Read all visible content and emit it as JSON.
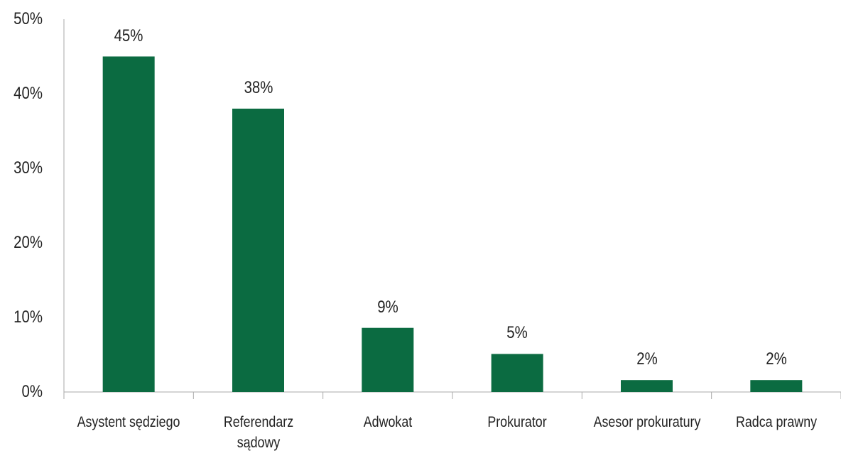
{
  "chart_data": {
    "type": "bar",
    "categories": [
      "Asystent sędziego",
      "Referendarz sądowy",
      "Adwokat",
      "Prokurator",
      "Asesor prokuratury",
      "Radca prawny"
    ],
    "values": [
      45,
      38,
      8.6,
      5.1,
      1.6,
      1.6
    ],
    "value_labels": [
      "45%",
      "38%",
      "9%",
      "5%",
      "2%",
      "2%"
    ],
    "color": "#0b6b41",
    "ylim": [
      0,
      50
    ],
    "yticks": [
      {
        "value": 0,
        "label": "0%"
      },
      {
        "value": 10,
        "label": "10%"
      },
      {
        "value": 20,
        "label": "20%"
      },
      {
        "value": 30,
        "label": "30%"
      },
      {
        "value": 40,
        "label": "40%"
      },
      {
        "value": 50,
        "label": "50%"
      }
    ],
    "grid": false
  }
}
